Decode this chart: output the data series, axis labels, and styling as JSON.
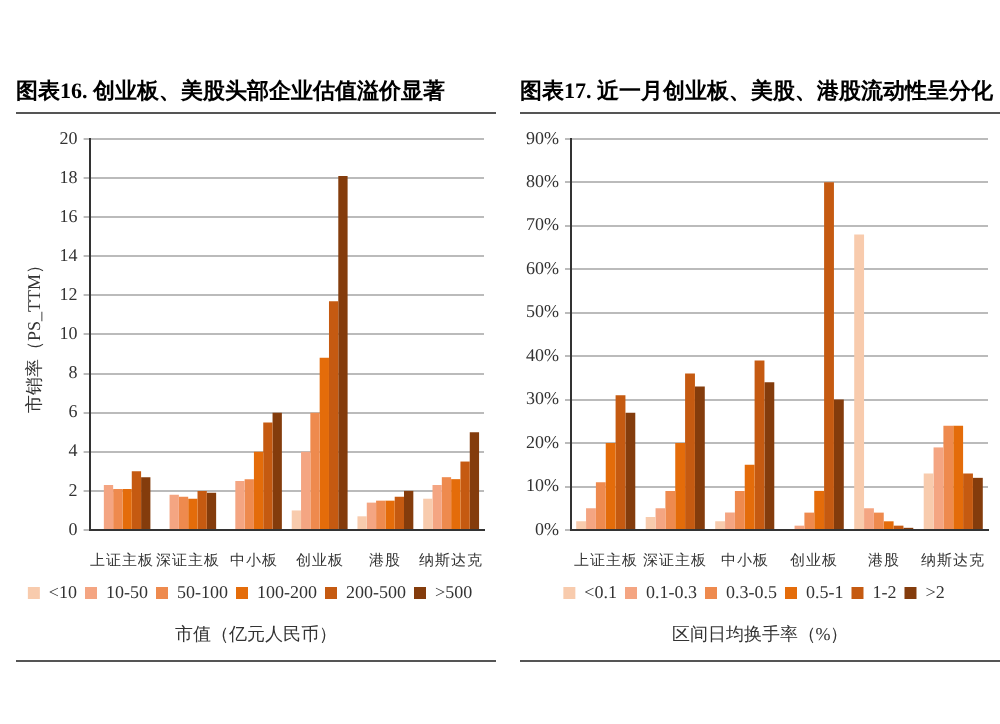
{
  "chart_data": [
    {
      "type": "bar",
      "title": "图表16. 创业板、美股头部企业估值溢价显著",
      "ylabel": "市销率（PS_TTM）",
      "xlabel": "市值（亿元人民币）",
      "categories": [
        "上证主板",
        "深证主板",
        "中小板",
        "创业板",
        "港股",
        "纳斯达克"
      ],
      "series": [
        {
          "name": "<10",
          "color": "#f8cbad",
          "values": [
            null,
            null,
            null,
            1.0,
            0.7,
            1.6
          ]
        },
        {
          "name": "10-50",
          "color": "#f4a582",
          "values": [
            2.3,
            1.8,
            2.5,
            4.0,
            1.4,
            2.3
          ]
        },
        {
          "name": "50-100",
          "color": "#ee8a4e",
          "values": [
            2.1,
            1.7,
            2.6,
            6.0,
            1.5,
            2.7
          ]
        },
        {
          "name": "100-200",
          "color": "#e46c0a",
          "values": [
            2.1,
            1.6,
            4.0,
            8.8,
            1.5,
            2.6
          ]
        },
        {
          "name": "200-500",
          "color": "#c55a11",
          "values": [
            3.0,
            2.0,
            5.5,
            11.7,
            1.7,
            3.5
          ]
        },
        {
          "name": ">500",
          "color": "#843c0c",
          "values": [
            2.7,
            1.9,
            6.0,
            18.1,
            2.0,
            5.0
          ]
        }
      ],
      "ylim": [
        0,
        20
      ],
      "yticks": [
        0,
        2,
        4,
        6,
        8,
        10,
        12,
        14,
        16,
        18,
        20
      ],
      "grid": "y",
      "legend": "bottom"
    },
    {
      "type": "bar",
      "title": "图表17. 近一月创业板、美股、港股流动性呈分化",
      "xlabel": "区间日均换手率（%）",
      "categories": [
        "上证主板",
        "深证主板",
        "中小板",
        "创业板",
        "港股",
        "纳斯达克"
      ],
      "series": [
        {
          "name": "<0.1",
          "color": "#f8cbad",
          "values": [
            2,
            3,
            2,
            null,
            68,
            13
          ]
        },
        {
          "name": "0.1-0.3",
          "color": "#f4a582",
          "values": [
            5,
            5,
            4,
            1,
            5,
            19
          ]
        },
        {
          "name": "0.3-0.5",
          "color": "#ee8a4e",
          "values": [
            11,
            9,
            9,
            4,
            4,
            24
          ]
        },
        {
          "name": "0.5-1",
          "color": "#e46c0a",
          "values": [
            20,
            20,
            15,
            9,
            2,
            24
          ]
        },
        {
          "name": "1-2",
          "color": "#c55a11",
          "values": [
            31,
            36,
            39,
            80,
            1,
            13
          ]
        },
        {
          "name": ">2",
          "color": "#843c0c",
          "values": [
            27,
            33,
            34,
            30,
            0.5,
            12
          ]
        }
      ],
      "ylim": [
        0,
        90
      ],
      "yticks": [
        {
          "value": 0,
          "label": "0%"
        },
        {
          "value": 10,
          "label": "10%"
        },
        {
          "value": 20,
          "label": "20%"
        },
        {
          "value": 30,
          "label": "30%"
        },
        {
          "value": 40,
          "label": "40%"
        },
        {
          "value": 50,
          "label": "50%"
        },
        {
          "value": 60,
          "label": "60%"
        },
        {
          "value": 70,
          "label": "70%"
        },
        {
          "value": 80,
          "label": "80%"
        },
        {
          "value": 90,
          "label": "90%"
        }
      ],
      "grid": "y",
      "legend": "bottom"
    }
  ]
}
